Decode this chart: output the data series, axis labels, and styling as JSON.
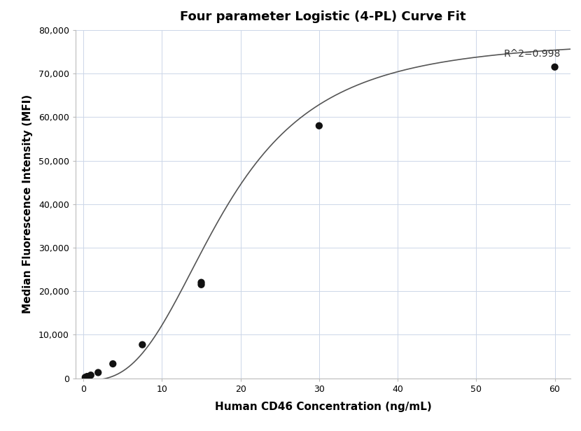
{
  "title": "Four parameter Logistic (4-PL) Curve Fit",
  "xlabel": "Human CD46 Concentration (ng/mL)",
  "ylabel": "Median Fluorescence Intensity (MFI)",
  "scatter_x": [
    0.23,
    0.47,
    0.94,
    1.875,
    3.75,
    7.5,
    15.0,
    15.0,
    30.0,
    60.0
  ],
  "scatter_y": [
    200,
    400,
    700,
    1300,
    3300,
    7700,
    21500,
    22000,
    58000,
    71500
  ],
  "r_squared": "R^2=0.998",
  "xlim": [
    -1,
    62
  ],
  "ylim": [
    0,
    80000
  ],
  "yticks": [
    0,
    10000,
    20000,
    30000,
    40000,
    50000,
    60000,
    70000,
    80000
  ],
  "xticks": [
    0,
    10,
    20,
    30,
    40,
    50,
    60
  ],
  "4pl_A": -500,
  "4pl_B": 2.8,
  "4pl_C": 18.0,
  "4pl_D": 78000,
  "background_color": "#ffffff",
  "grid_color": "#ccd6e8",
  "scatter_color": "#111111",
  "line_color": "#555555",
  "title_fontsize": 13,
  "label_fontsize": 11,
  "annotation_fontsize": 10,
  "tick_labelsize": 9
}
